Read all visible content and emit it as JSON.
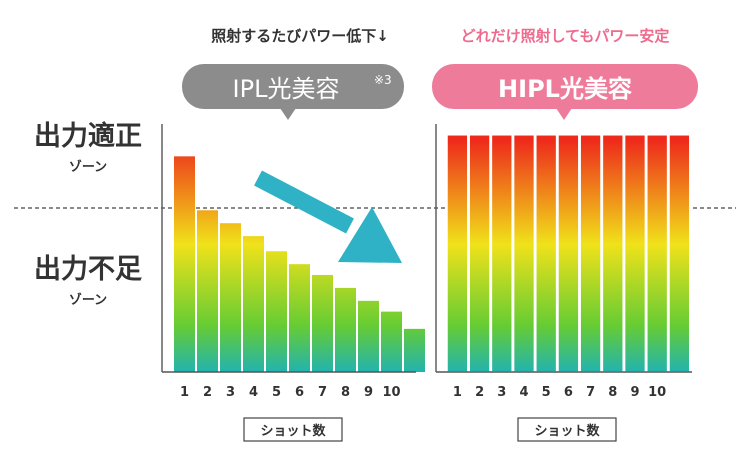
{
  "zones": {
    "upper": {
      "title": "出力適正",
      "sub": "ゾーン"
    },
    "lower": {
      "title": "出力不足",
      "sub": "ゾーン"
    }
  },
  "chart_data": [
    {
      "type": "bar",
      "caption": "照射するたびパワー低下↓",
      "badge": "IPL光美容",
      "badge_note": "※3",
      "categories": [
        "1",
        "2",
        "3",
        "4",
        "5",
        "6",
        "7",
        "8",
        "9",
        "10",
        ""
      ],
      "values": [
        100,
        75,
        69,
        63,
        56,
        50,
        45,
        39,
        33,
        28,
        20
      ],
      "xlabel": "ショット数",
      "ylim": [
        0,
        115
      ],
      "threshold": 84,
      "arrow": "down-right",
      "colors": {
        "top": "#ee2a1b",
        "mid": "#f0e21a",
        "green": "#66cc33",
        "bottom": "#22b3b0",
        "badge": "#8c8c8c",
        "caption": "#333333",
        "arrow": "#2fb2c6"
      }
    },
    {
      "type": "bar",
      "caption": "どれだけ照射してもパワー安定",
      "badge": "HIPL光美容",
      "categories": [
        "1",
        "2",
        "3",
        "4",
        "5",
        "6",
        "7",
        "8",
        "9",
        "10",
        ""
      ],
      "values": [
        110,
        110,
        110,
        110,
        110,
        110,
        110,
        110,
        110,
        110,
        110
      ],
      "xlabel": "ショット数",
      "ylim": [
        0,
        115
      ],
      "threshold": 84,
      "colors": {
        "top": "#ee2a1b",
        "mid": "#f0e21a",
        "green": "#66cc33",
        "bottom": "#22b3b0",
        "badge": "#ef7b9b",
        "caption": "#ef6b8e"
      }
    }
  ]
}
